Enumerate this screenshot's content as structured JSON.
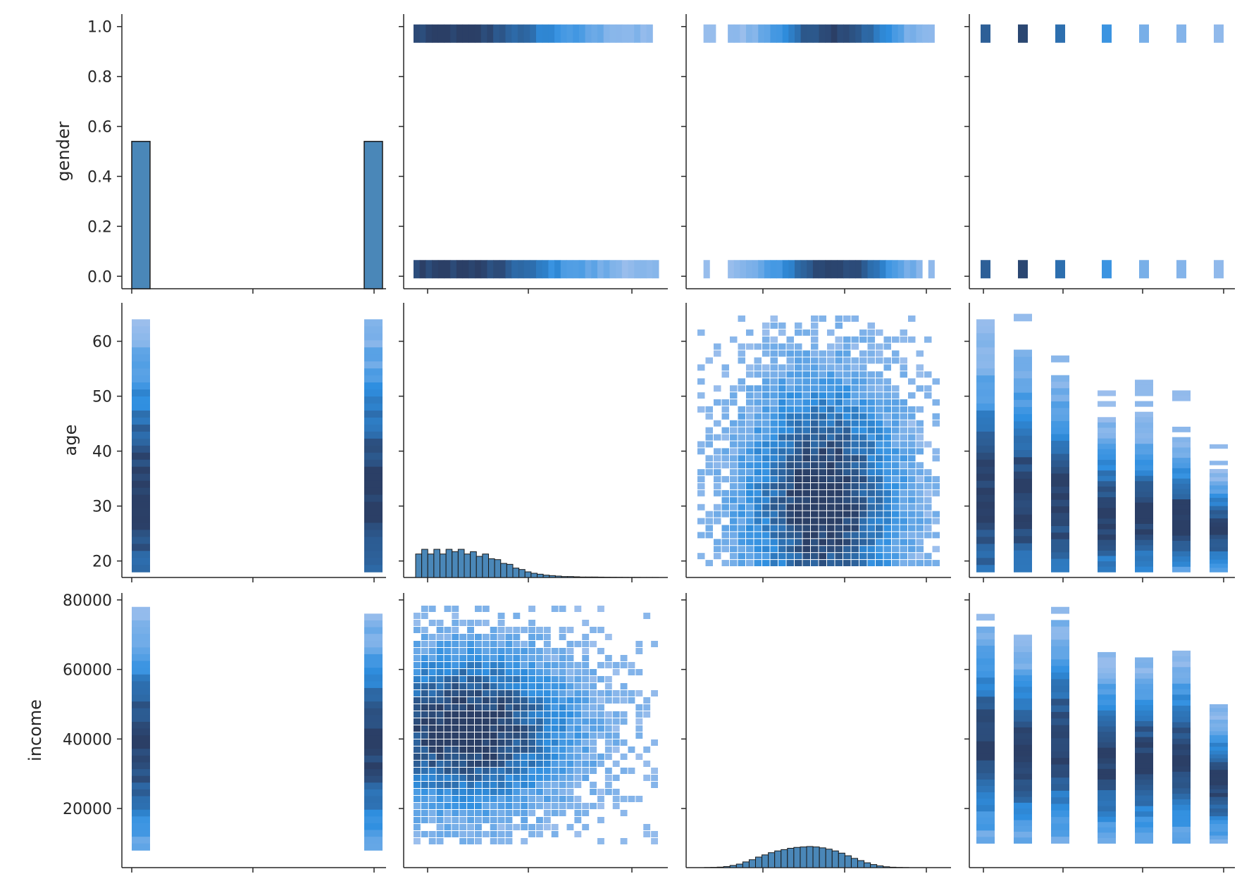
{
  "chart_data": {
    "type": "pairgrid-histogram",
    "variables": [
      "gender",
      "age",
      "income"
    ],
    "ylabels": {
      "gender": "gender",
      "age": "age",
      "income": "income"
    },
    "colors": {
      "bar_fill": "#4a87b8",
      "bar_edge": "#1a1a1a",
      "light": "#a8c4ee",
      "mid": "#2f8fe0",
      "dark": "#2b3f66"
    },
    "y_ticks": {
      "gender": [
        "0.0",
        "0.2",
        "0.4",
        "0.6",
        "0.8",
        "1.0"
      ],
      "age": [
        "20",
        "30",
        "40",
        "50",
        "60"
      ],
      "income": [
        "20000",
        "40000",
        "60000",
        "80000"
      ]
    },
    "diag": {
      "gender": {
        "type": "bar",
        "bars": [
          {
            "x": 0,
            "density": 0.54
          },
          {
            "x": 1,
            "density": 0.54
          }
        ]
      },
      "age": {
        "type": "histogram",
        "range": [
          18,
          65
        ],
        "counts": [
          0.5,
          0.6,
          0.5,
          0.6,
          0.5,
          0.6,
          0.55,
          0.6,
          0.5,
          0.55,
          0.45,
          0.5,
          0.4,
          0.38,
          0.3,
          0.28,
          0.2,
          0.17,
          0.12,
          0.09,
          0.07,
          0.05,
          0.04,
          0.03,
          0.02,
          0.02,
          0.015,
          0.01,
          0.01,
          0.01,
          0.008,
          0.006,
          0.005,
          0.004,
          0.003,
          0.002,
          0.002,
          0.001,
          0.001,
          0.001
        ]
      },
      "income": {
        "type": "histogram",
        "range": [
          5000,
          80000
        ],
        "counts": [
          0.003,
          0.006,
          0.012,
          0.025,
          0.05,
          0.08,
          0.13,
          0.18,
          0.24,
          0.29,
          0.34,
          0.38,
          0.41,
          0.44,
          0.46,
          0.47,
          0.48,
          0.47,
          0.45,
          0.42,
          0.38,
          0.33,
          0.27,
          0.21,
          0.16,
          0.11,
          0.07,
          0.04,
          0.02,
          0.01,
          0.005,
          0.002
        ]
      }
    },
    "axis_ranges": {
      "gender": [
        -0.05,
        1.05
      ],
      "age": [
        17,
        67
      ],
      "income": [
        3000,
        82000
      ]
    }
  }
}
